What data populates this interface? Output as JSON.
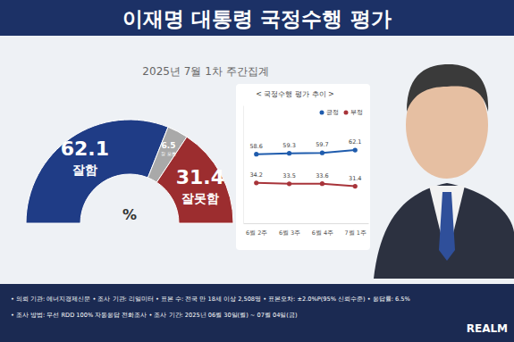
{
  "page": {
    "title": "이재명 대통령 국정수행 평가",
    "subtitle": "2025년 7월 1차 주간집계",
    "footer": [
      "• 의뢰 기관: 에너지경제신문 • 조사 기관: 리얼미터 • 표본 수: 전국 만 18세 이상 2,508명 • 표본오차: ±2.0%P(95% 신뢰수준) • 응답률: 6.5%",
      "• 조사 방법: 무선 RDD 100% 자동응답 전화조사 • 조사 기간: 2025년 06월 30일(월) ~ 07월 04일(금)"
    ],
    "logo": "REALM"
  },
  "chart_data": [
    {
      "type": "pie",
      "categories": [
        "잘함",
        "잘 모름",
        "잘못함"
      ],
      "values": [
        62.1,
        6.5,
        31.4
      ],
      "colors": [
        "#1f3c86",
        "#a9a9a9",
        "#9c2d2f"
      ],
      "data_labels": true,
      "annotation": "%"
    },
    {
      "type": "line",
      "title": "< 국정수행 평가 추이 >",
      "categories": [
        "6월 2주",
        "6월 3주",
        "6월 4주",
        "7월 1주"
      ],
      "series": [
        {
          "name": "긍정",
          "color": "#1f5cad",
          "values": [
            58.6,
            59.3,
            59.7,
            62.1
          ]
        },
        {
          "name": "부정",
          "color": "#a8343a",
          "values": [
            34.2,
            33.5,
            33.6,
            31.4
          ]
        }
      ],
      "ylim": [
        0,
        100
      ],
      "marker": "circle",
      "data_labels": true,
      "legend": "top-right",
      "tick_labels": "x"
    }
  ]
}
